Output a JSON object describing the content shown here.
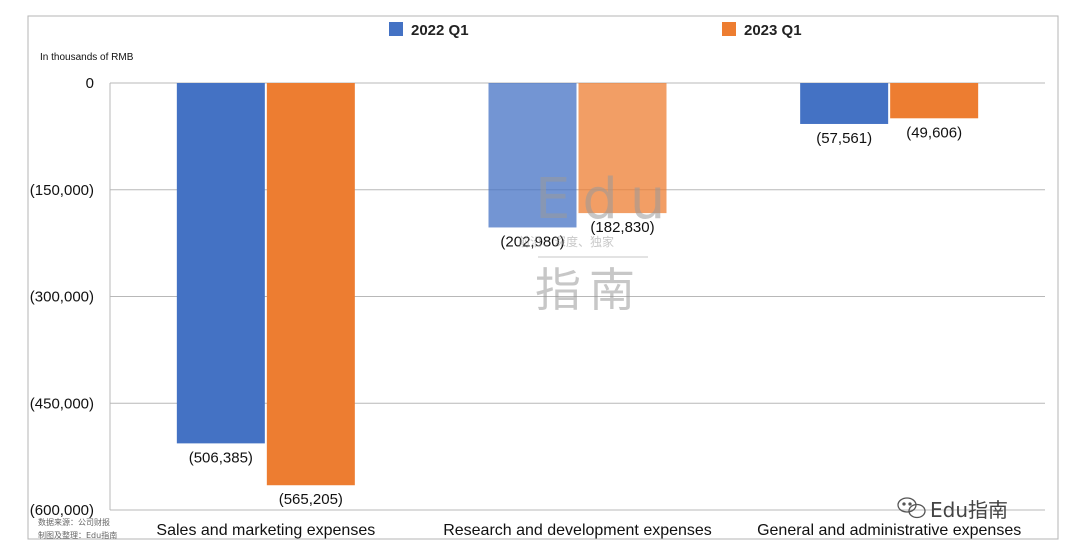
{
  "chart_data": {
    "type": "bar",
    "unit_label": "In thousands of RMB",
    "categories": [
      "Sales and marketing expenses",
      "Research and development expenses",
      "General and administrative expenses"
    ],
    "series": [
      {
        "name": "2022 Q1",
        "color": "#4472C4",
        "values": [
          -506385,
          -202980,
          -57561
        ],
        "labels": [
          "(506,385)",
          "(202,980)",
          "(57,561)"
        ]
      },
      {
        "name": "2023 Q1",
        "color": "#ED7D31",
        "values": [
          -565205,
          -182830,
          -49606
        ],
        "labels": [
          "(565,205)",
          "(182,830)",
          "(49,606)"
        ]
      }
    ],
    "ylim": [
      -600000,
      0
    ],
    "yticks": [
      0,
      -150000,
      -300000,
      -450000,
      -600000
    ],
    "ytick_labels": [
      "0",
      "(150,000)",
      "(300,000)",
      "(450,000)",
      "(600,000)"
    ],
    "grid": true,
    "legend_position": "top-center"
  },
  "source_note": {
    "line1": "数据来源：公司财报",
    "line2": "制图及整理：Edu指南"
  },
  "watermark": {
    "top": "Edu",
    "middle": "前沿、深度、独家",
    "bottom": "指南"
  },
  "brand": {
    "text": "Edu指南",
    "icon": "wechat-icon"
  }
}
